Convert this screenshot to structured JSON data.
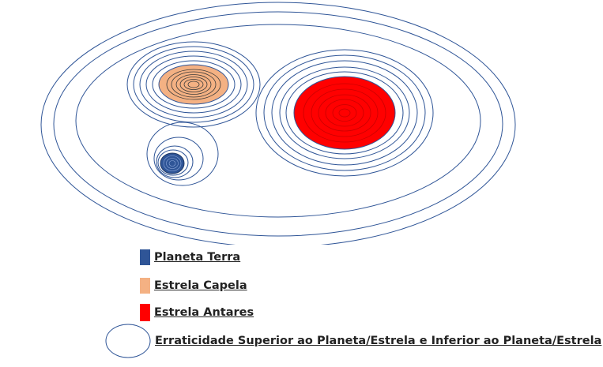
{
  "legend": {
    "items": [
      {
        "label": "Planeta Terra",
        "color": "#2f5597"
      },
      {
        "label": "Estrela Capela",
        "color": "#f4b183"
      },
      {
        "label": "Estrela Antares",
        "color": "#ff0000"
      },
      {
        "label": "Erraticidade Superior ao Planeta/Estrela e Inferior ao Planeta/Estrela",
        "color": "#ffffff"
      }
    ]
  },
  "colors": {
    "orbit_stroke": "#2f5597",
    "earth": "#2f5597",
    "capela": "#f4b183",
    "antares": "#ff0000"
  }
}
